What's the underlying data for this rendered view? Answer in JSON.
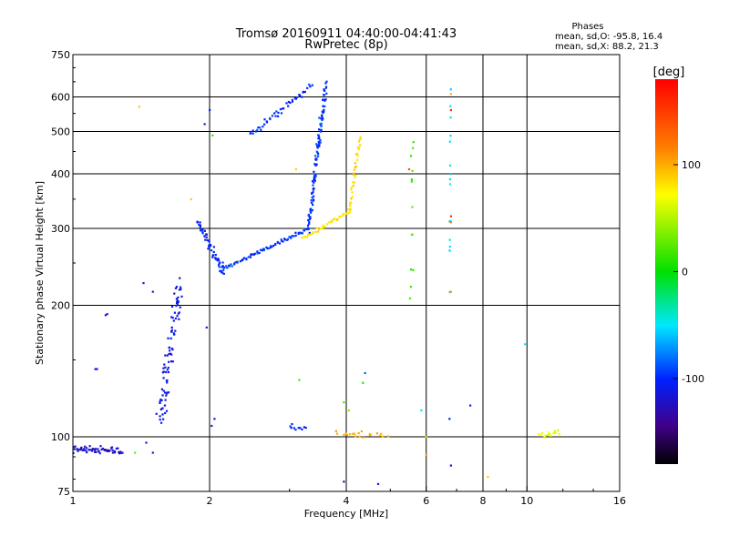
{
  "chart_data": {
    "type": "scatter",
    "title": "Tromsø 20160911 04:40:00-04:41:43",
    "subtitle": "RwPretec (8p)",
    "xlabel": "Frequency [MHz]",
    "ylabel": "Stationary phase Virtual Height [km]",
    "xscale": "log",
    "yscale": "log",
    "xlim": [
      1,
      16
    ],
    "ylim": [
      75,
      750
    ],
    "xticks": [
      1,
      2,
      4,
      6,
      8,
      10,
      16
    ],
    "xtick_labels": [
      "1",
      "2",
      "4",
      "6",
      "8",
      "10",
      "16"
    ],
    "yticks": [
      75,
      100,
      200,
      300,
      400,
      500,
      600,
      750
    ],
    "ytick_labels": [
      "75",
      "100",
      "200",
      "300",
      "400",
      "500",
      "600",
      "750"
    ],
    "vgrid": [
      2,
      4,
      6,
      8,
      10
    ],
    "hgrid": [
      100,
      200,
      300,
      400,
      500,
      600
    ],
    "phase_stats": {
      "title": "Phases",
      "line1": "mean, sd,O:  -95.8, 16.4",
      "line2": "mean, sd,X:  88.2, 21.3"
    },
    "colorbar": {
      "label": "[deg]",
      "range": [
        -180,
        180
      ],
      "ticks": [
        100,
        0,
        -100
      ],
      "tick_labels": [
        "100",
        "0",
        "-100"
      ]
    },
    "segments": [
      {
        "name": "ground-echo",
        "x0": 1.0,
        "x1": 1.28,
        "y0": 94,
        "y1": 93,
        "n": 60,
        "phase": -120,
        "jf": 0.008,
        "jh": 0.025
      },
      {
        "name": "E-trace",
        "x0": 1.55,
        "x1": 1.72,
        "y0": 108,
        "y1": 225,
        "n": 90,
        "phase": -108,
        "jf": 0.035,
        "jh": 0.07
      },
      {
        "name": "O-low",
        "x0": 1.88,
        "x1": 2.15,
        "y0": 310,
        "y1": 238,
        "n": 55,
        "phase": -100,
        "jf": 0.015,
        "jh": 0.04
      },
      {
        "name": "O-F-main",
        "x0": 2.1,
        "x1": 3.3,
        "y0": 240,
        "y1": 300,
        "n": 75,
        "phase": -95,
        "jf": 0.008,
        "jh": 0.015
      },
      {
        "name": "O-cusp",
        "x0": 3.3,
        "x1": 3.6,
        "y0": 300,
        "y1": 640,
        "n": 120,
        "phase": -95,
        "jf": 0.012,
        "jh": 0.06
      },
      {
        "name": "O-upper",
        "x0": 2.45,
        "x1": 3.35,
        "y0": 490,
        "y1": 640,
        "n": 45,
        "phase": -98,
        "jf": 0.01,
        "jh": 0.03
      },
      {
        "name": "X-trace",
        "x0": 3.2,
        "x1": 4.1,
        "y0": 285,
        "y1": 330,
        "n": 45,
        "phase": 90,
        "jf": 0.01,
        "jh": 0.015
      },
      {
        "name": "X-cusp",
        "x0": 4.05,
        "x1": 4.3,
        "y0": 330,
        "y1": 490,
        "n": 40,
        "phase": 95,
        "jf": 0.008,
        "jh": 0.03
      },
      {
        "name": "vertical-5.6",
        "x0": 5.55,
        "x1": 5.6,
        "y0": 200,
        "y1": 495,
        "n": 12,
        "phase": 20,
        "jf": 0.01,
        "jh": 0.25
      },
      {
        "name": "vertical-6.8",
        "x0": 6.75,
        "x1": 6.8,
        "y0": 210,
        "y1": 610,
        "n": 14,
        "phase": -40,
        "jf": 0.006,
        "jh": 0.3
      },
      {
        "name": "low-cluster-4",
        "x0": 3.85,
        "x1": 4.9,
        "y0": 102,
        "y1": 101,
        "n": 25,
        "phase": 110,
        "jf": 0.03,
        "jh": 0.02
      },
      {
        "name": "low-cluster-11",
        "x0": 10.6,
        "x1": 11.8,
        "y0": 101,
        "y1": 102,
        "n": 14,
        "phase": 70,
        "jf": 0.01,
        "jh": 0.02
      },
      {
        "name": "low-cluster-3",
        "x0": 3.0,
        "x1": 3.25,
        "y0": 106,
        "y1": 104,
        "n": 10,
        "phase": -100,
        "jf": 0.01,
        "jh": 0.02
      }
    ],
    "points": [
      {
        "x": 1.12,
        "y": 143,
        "phase": -110
      },
      {
        "x": 1.13,
        "y": 143,
        "phase": -110
      },
      {
        "x": 1.18,
        "y": 190,
        "phase": -115
      },
      {
        "x": 1.19,
        "y": 191,
        "phase": -115
      },
      {
        "x": 1.4,
        "y": 570,
        "phase": 100
      },
      {
        "x": 1.45,
        "y": 97,
        "phase": -110
      },
      {
        "x": 1.37,
        "y": 92,
        "phase": 30
      },
      {
        "x": 1.5,
        "y": 92,
        "phase": -110
      },
      {
        "x": 1.43,
        "y": 225,
        "phase": -110
      },
      {
        "x": 1.5,
        "y": 215,
        "phase": -110
      },
      {
        "x": 1.97,
        "y": 178,
        "phase": -110
      },
      {
        "x": 2.0,
        "y": 560,
        "phase": -100
      },
      {
        "x": 2.03,
        "y": 490,
        "phase": 15
      },
      {
        "x": 1.95,
        "y": 520,
        "phase": -100
      },
      {
        "x": 1.82,
        "y": 350,
        "phase": 100
      },
      {
        "x": 1.88,
        "y": 310,
        "phase": -100
      },
      {
        "x": 2.05,
        "y": 110,
        "phase": -110
      },
      {
        "x": 2.02,
        "y": 106,
        "phase": -110
      },
      {
        "x": 3.15,
        "y": 135,
        "phase": 20
      },
      {
        "x": 3.1,
        "y": 410,
        "phase": 100
      },
      {
        "x": 3.95,
        "y": 120,
        "phase": 20
      },
      {
        "x": 4.05,
        "y": 115,
        "phase": 40
      },
      {
        "x": 4.35,
        "y": 133,
        "phase": 10
      },
      {
        "x": 4.4,
        "y": 140,
        "phase": -80
      },
      {
        "x": 3.95,
        "y": 79,
        "phase": -140
      },
      {
        "x": 4.7,
        "y": 78,
        "phase": -110
      },
      {
        "x": 5.55,
        "y": 440,
        "phase": 15
      },
      {
        "x": 5.5,
        "y": 410,
        "phase": 150
      },
      {
        "x": 6.8,
        "y": 560,
        "phase": 165
      },
      {
        "x": 6.8,
        "y": 610,
        "phase": 110
      },
      {
        "x": 6.8,
        "y": 400,
        "phase": -50
      },
      {
        "x": 6.8,
        "y": 320,
        "phase": 160
      },
      {
        "x": 6.8,
        "y": 310,
        "phase": 130
      },
      {
        "x": 6.8,
        "y": 215,
        "phase": 120
      },
      {
        "x": 6.75,
        "y": 110,
        "phase": -100
      },
      {
        "x": 6.8,
        "y": 86,
        "phase": -110
      },
      {
        "x": 6.0,
        "y": 91,
        "phase": 120
      },
      {
        "x": 7.5,
        "y": 118,
        "phase": -100
      },
      {
        "x": 8.2,
        "y": 81,
        "phase": 100
      },
      {
        "x": 9.9,
        "y": 163,
        "phase": -40
      },
      {
        "x": 5.85,
        "y": 115,
        "phase": -40
      },
      {
        "x": 6.0,
        "y": 100,
        "phase": 60
      }
    ]
  }
}
